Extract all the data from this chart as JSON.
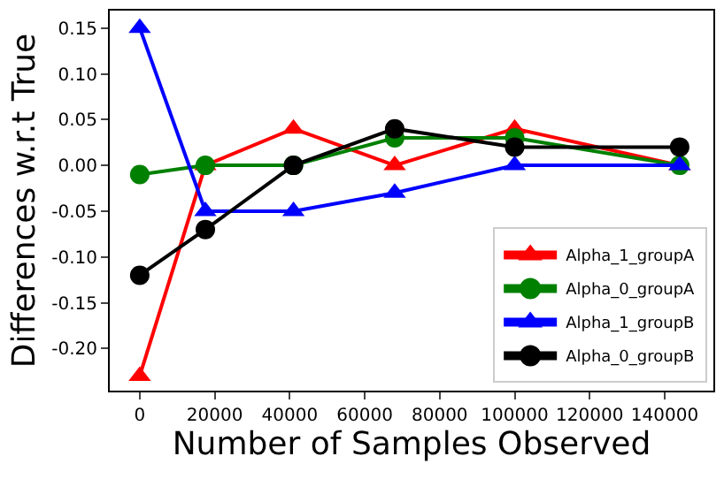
{
  "chart_data": {
    "type": "line",
    "xlabel": "Number of Samples Observed",
    "ylabel": "Differences w.r.t True",
    "x": [
      0,
      17500,
      41000,
      68000,
      100000,
      144000
    ],
    "xlim": [
      -8000,
      153000
    ],
    "xticks": [
      0,
      20000,
      40000,
      60000,
      80000,
      100000,
      120000,
      140000
    ],
    "ylim": [
      -0.246,
      0.169
    ],
    "yticks": [
      {
        "value": -0.2,
        "label": "-0.20"
      },
      {
        "value": -0.15,
        "label": "-0.15"
      },
      {
        "value": -0.1,
        "label": "-0.10"
      },
      {
        "value": -0.05,
        "label": "-0.05"
      },
      {
        "value": 0,
        "label": "0.00"
      },
      {
        "value": 0.05,
        "label": "0.05"
      },
      {
        "value": 0.1,
        "label": "0.10"
      },
      {
        "value": 0.15,
        "label": "0.15"
      }
    ],
    "legend": "bottom right",
    "line_style": "solid",
    "series": [
      {
        "name": "Alpha_1_groupA",
        "color": "#ff0000",
        "marker": "triangle",
        "values": [
          -0.23,
          0,
          0.04,
          0,
          0.04,
          0
        ]
      },
      {
        "name": "Alpha_0_groupA",
        "color": "#008000",
        "marker": "circle",
        "values": [
          -0.01,
          0,
          0,
          0.03,
          0.03,
          0
        ]
      },
      {
        "name": "Alpha_1_groupB",
        "color": "#0000ff",
        "marker": "triangle",
        "values": [
          0.15,
          -0.05,
          -0.05,
          -0.03,
          0,
          0
        ]
      },
      {
        "name": "Alpha_0_groupB",
        "color": "#000000",
        "marker": "circle",
        "values": [
          -0.12,
          -0.07,
          0,
          0.04,
          0.02,
          0.02
        ]
      }
    ]
  }
}
